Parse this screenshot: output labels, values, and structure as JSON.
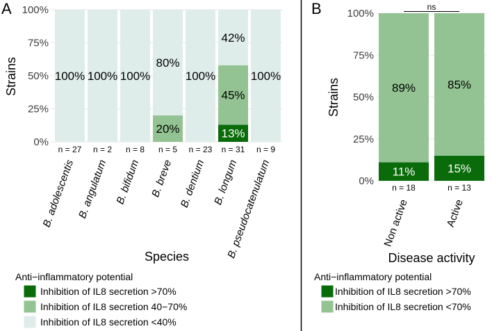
{
  "colors": {
    "high": "#0a6b0a",
    "mid": "#93c393",
    "low": "#dfedea",
    "grid": "#e6e6e6",
    "divider": "#000000"
  },
  "chart_data": [
    {
      "type": "bar",
      "panel": "A",
      "stacked": true,
      "title": "",
      "xlabel": "Species",
      "ylabel": "Strains",
      "ylim": [
        0,
        100
      ],
      "yticks": [
        "0%",
        "25%",
        "50%",
        "75%",
        "100%"
      ],
      "categories": [
        "B. adolescentis",
        "B. angulatum",
        "B. bifidum",
        "B. breve",
        "B. dentium",
        "B. longum",
        "B. pseudocatenulatum"
      ],
      "n_labels": [
        "n = 27",
        "n = 2",
        "n = 8",
        "n = 5",
        "n = 23",
        "n = 31",
        "n = 9"
      ],
      "series": [
        {
          "name": "Inhibition of IL8 secretion >70%",
          "color_key": "high",
          "values": [
            0,
            0,
            0,
            0,
            0,
            13,
            0
          ]
        },
        {
          "name": "Inhibition of IL8 secretion 40−70%",
          "color_key": "mid",
          "values": [
            0,
            0,
            0,
            20,
            0,
            45,
            0
          ]
        },
        {
          "name": "Inhibition of IL8 secretion <40%",
          "color_key": "low",
          "values": [
            100,
            100,
            100,
            80,
            100,
            42,
            100
          ]
        }
      ],
      "legend": {
        "title": "Anti−inflammatory potential",
        "items": [
          "Inhibition of IL8 secretion >70%",
          "Inhibition of IL8 secretion 40−70%",
          "Inhibition of IL8 secretion <40%"
        ]
      }
    },
    {
      "type": "bar",
      "panel": "B",
      "stacked": true,
      "title": "",
      "xlabel": "Disease activity",
      "ylabel": "Strains",
      "ylim": [
        0,
        100
      ],
      "yticks": [
        "0%",
        "25%",
        "50%",
        "75%",
        "100%"
      ],
      "categories": [
        "Non active",
        "Active"
      ],
      "n_labels": [
        "n = 18",
        "n = 13"
      ],
      "series": [
        {
          "name": "Inhibition of IL8 secretion >70%",
          "color_key": "high",
          "values": [
            11,
            15
          ]
        },
        {
          "name": "Inhibition of IL8 secretion <70%",
          "color_key": "mid",
          "values": [
            89,
            85
          ]
        }
      ],
      "significance": "ns",
      "legend": {
        "title": "Anti−inflammatory potential",
        "items": [
          "Inhibition of IL8 secretion >70%",
          "Inhibition of IL8 secretion <70%"
        ]
      }
    }
  ]
}
